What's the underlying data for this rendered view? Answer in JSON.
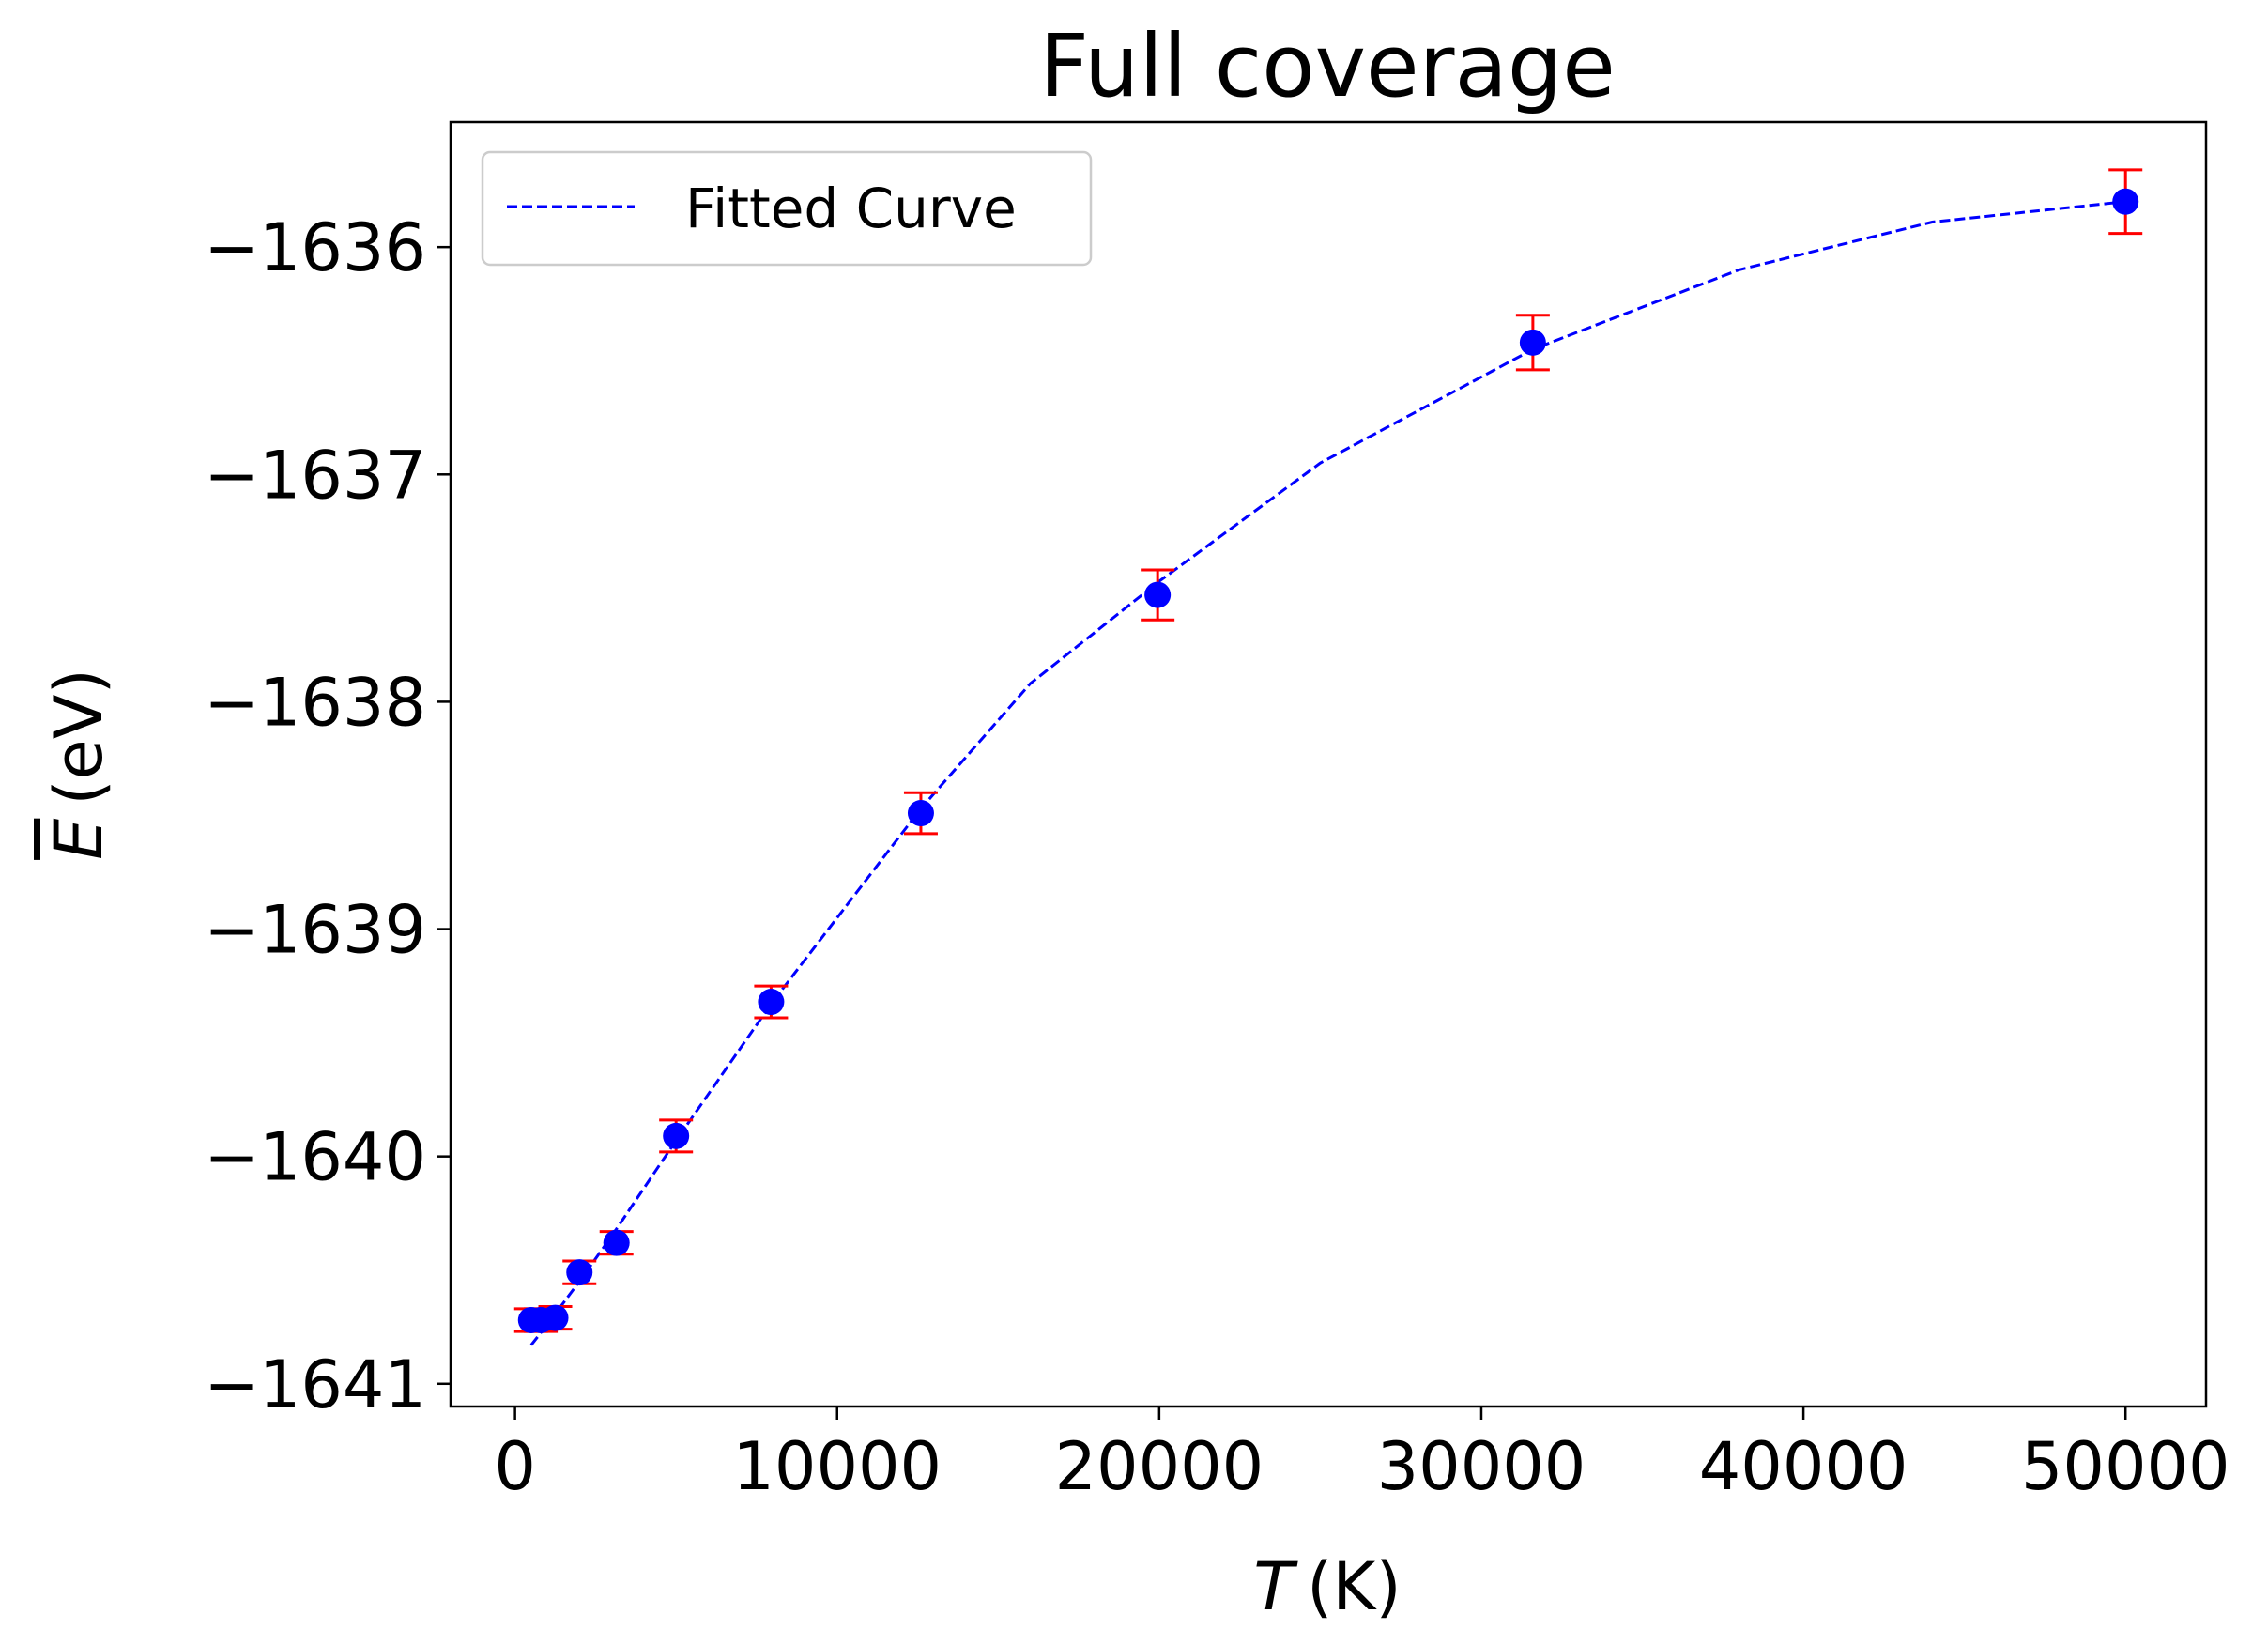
{
  "chart_data": {
    "type": "scatter",
    "title": "Full coverage",
    "xlabel": {
      "symbol": "T",
      "unit": "(K)"
    },
    "ylabel": {
      "symbol": "E",
      "unit": "(eV)"
    },
    "xlim": [
      -2000,
      52500
    ],
    "ylim": [
      -1641.1,
      -1635.45
    ],
    "xticks": [
      0,
      10000,
      20000,
      30000,
      40000,
      50000
    ],
    "xtick_labels": [
      "0",
      "10000",
      "20000",
      "30000",
      "40000",
      "50000"
    ],
    "yticks": [
      -1641,
      -1640,
      -1639,
      -1638,
      -1637,
      -1636
    ],
    "ytick_labels": [
      "−1641",
      "−1640",
      "−1639",
      "−1638",
      "−1637",
      "−1636"
    ],
    "grid": false,
    "legend": {
      "placement": "top-left",
      "entries": [
        "Fitted Curve"
      ]
    },
    "colors": {
      "points": "#0000ff",
      "errorbars": "#ff0000",
      "fit": "#0000ff"
    },
    "series": [
      {
        "kind": "errorbar",
        "x": [
          500,
          800,
          1250,
          2000,
          3150,
          5000,
          7950,
          12600,
          19950,
          31600,
          50000
        ],
        "y": [
          -1640.72,
          -1640.72,
          -1640.71,
          -1640.51,
          -1640.38,
          -1639.91,
          -1639.32,
          -1638.49,
          -1637.53,
          -1636.42,
          -1635.8
        ],
        "yerr": [
          0.05,
          0.05,
          0.05,
          0.05,
          0.05,
          0.07,
          0.07,
          0.09,
          0.11,
          0.12,
          0.14
        ]
      },
      {
        "name": "Fitted Curve",
        "kind": "line",
        "style": "dashed",
        "x": [
          500,
          1000,
          2000,
          3000,
          5000,
          8000,
          12600,
          16000,
          20000,
          25000,
          31600,
          38000,
          44000,
          50000
        ],
        "y": [
          -1640.83,
          -1640.74,
          -1640.55,
          -1640.35,
          -1639.93,
          -1639.32,
          -1638.47,
          -1637.92,
          -1637.47,
          -1636.95,
          -1636.45,
          -1636.1,
          -1635.89,
          -1635.8
        ]
      }
    ]
  }
}
